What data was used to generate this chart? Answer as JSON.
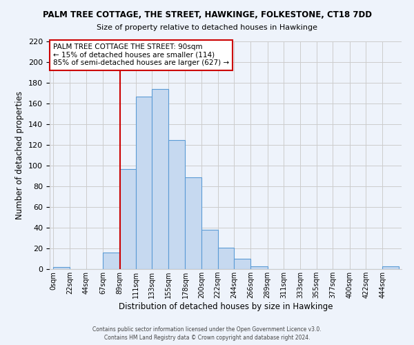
{
  "title": "PALM TREE COTTAGE, THE STREET, HAWKINGE, FOLKESTONE, CT18 7DD",
  "subtitle": "Size of property relative to detached houses in Hawkinge",
  "xlabel": "Distribution of detached houses by size in Hawkinge",
  "ylabel": "Number of detached properties",
  "bin_edges": [
    0,
    22,
    44,
    67,
    89,
    111,
    133,
    155,
    178,
    200,
    222,
    244,
    266,
    289,
    311,
    333,
    355,
    377,
    400,
    422,
    444
  ],
  "bin_labels": [
    "0sqm",
    "22sqm",
    "44sqm",
    "67sqm",
    "89sqm",
    "111sqm",
    "133sqm",
    "155sqm",
    "178sqm",
    "200sqm",
    "222sqm",
    "244sqm",
    "266sqm",
    "289sqm",
    "311sqm",
    "333sqm",
    "355sqm",
    "377sqm",
    "400sqm",
    "422sqm",
    "444sqm"
  ],
  "counts": [
    2,
    0,
    0,
    16,
    97,
    167,
    174,
    125,
    89,
    38,
    21,
    10,
    3,
    0,
    0,
    0,
    0,
    0,
    0,
    0,
    3
  ],
  "bar_color": "#c6d9f0",
  "bar_edge_color": "#5b9bd5",
  "grid_color": "#cccccc",
  "bg_color": "#eef3fb",
  "property_size": 90,
  "property_label": "PALM TREE COTTAGE THE STREET: 90sqm",
  "pct_smaller": 15,
  "count_smaller": 114,
  "pct_larger_semi": 85,
  "count_larger_semi": 627,
  "vline_color": "#cc0000",
  "annotation_box_edge_color": "#cc0000",
  "ylim": [
    0,
    220
  ],
  "yticks": [
    0,
    20,
    40,
    60,
    80,
    100,
    120,
    140,
    160,
    180,
    200,
    220
  ],
  "footer1": "Contains HM Land Registry data © Crown copyright and database right 2024.",
  "footer2": "Contains public sector information licensed under the Open Government Licence v3.0."
}
